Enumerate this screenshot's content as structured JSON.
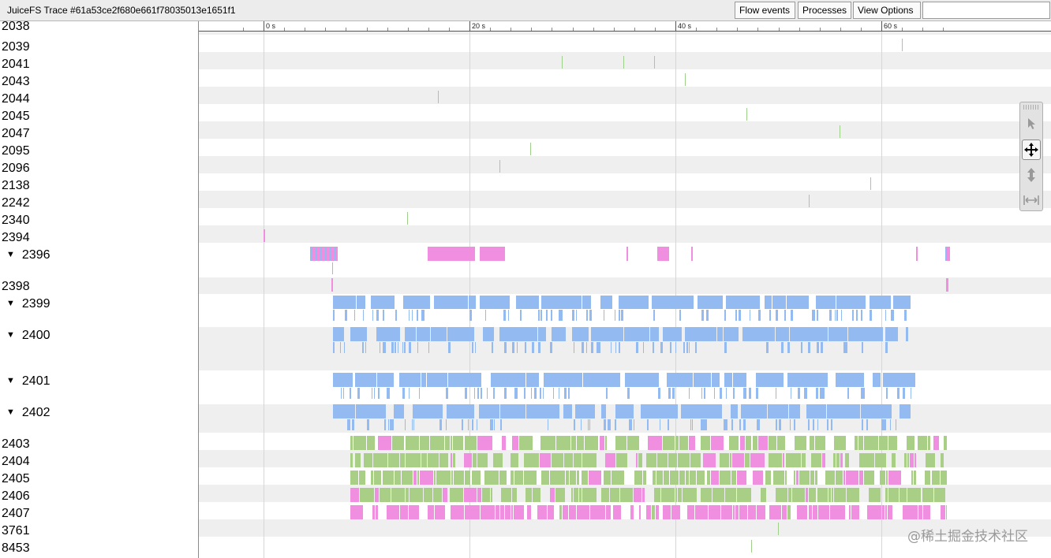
{
  "window": {
    "title": "JuiceFS Trace #61a53ce2f680e661f78035013e1651f1"
  },
  "toolbar": {
    "flow_events_label": "Flow events",
    "processes_label": "Processes",
    "view_options_label": "View Options",
    "search_value": ""
  },
  "timeline": {
    "tick_labels": [
      "0 s",
      "20 s",
      "40 s",
      "60 s"
    ],
    "tick_seconds": [
      0,
      20,
      40,
      60
    ]
  },
  "tracks": [
    {
      "label": "2038"
    },
    {
      "label": "2039"
    },
    {
      "label": "2041"
    },
    {
      "label": "2043"
    },
    {
      "label": "2044"
    },
    {
      "label": "2045"
    },
    {
      "label": "2047"
    },
    {
      "label": "2095"
    },
    {
      "label": "2096"
    },
    {
      "label": "2138"
    },
    {
      "label": "2242"
    },
    {
      "label": "2340"
    },
    {
      "label": "2394"
    },
    {
      "label": "2396",
      "expanded": true
    },
    {
      "label": "2398"
    },
    {
      "label": "2399",
      "expanded": true
    },
    {
      "label": "2400",
      "expanded": true
    },
    {
      "label": "2401",
      "expanded": true
    },
    {
      "label": "2402",
      "expanded": true
    },
    {
      "label": "2403"
    },
    {
      "label": "2404"
    },
    {
      "label": "2405"
    },
    {
      "label": "2406"
    },
    {
      "label": "2407"
    },
    {
      "label": "3761"
    },
    {
      "label": "8453"
    }
  ],
  "colors": {
    "slice_pink": "#f08ee0",
    "slice_blue": "#93bbf2",
    "slice_green": "#a9cf86",
    "tick_green": "#9fd08a",
    "row_alt": "#efefef",
    "titlebar_bg": "#ececec"
  },
  "mouse_mode_tools": [
    {
      "icon": "cursor-arrow-icon",
      "active": false
    },
    {
      "icon": "pan-move-icon",
      "active": true
    },
    {
      "icon": "zoom-vertical-icon",
      "active": false
    },
    {
      "icon": "timing-horizontal-icon",
      "active": false
    }
  ],
  "watermark": "@稀土掘金技术社区"
}
